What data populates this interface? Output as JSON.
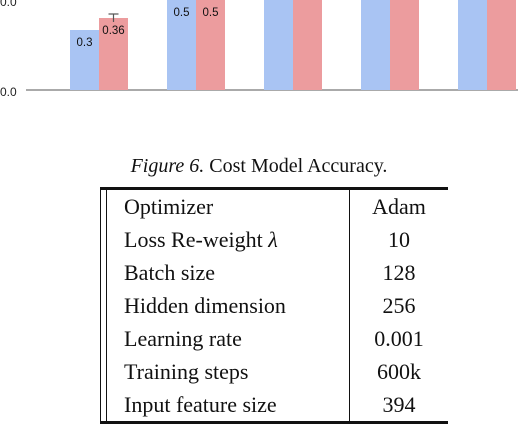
{
  "chart_data": {
    "type": "bar",
    "ytick_label": "0.0",
    "series": [
      {
        "color": "#a9c4f3",
        "values": [
          0.3,
          0.5,
          null,
          null,
          null
        ]
      },
      {
        "color": "#ec9c9e",
        "values": [
          0.36,
          0.5,
          null,
          null,
          null
        ]
      }
    ],
    "data_labels": [
      [
        "0.3",
        "0.5"
      ],
      [
        "0.36",
        "0.5"
      ]
    ],
    "error": [
      null,
      [
        0.34,
        0.38
      ]
    ]
  },
  "caption": {
    "figure_label": "Figure 6.",
    "text": "Cost Model Accuracy."
  },
  "table": {
    "rows": [
      {
        "param": "Optimizer",
        "value": "Adam"
      },
      {
        "param": "Loss Re-weight ",
        "symbol": "λ",
        "value": "10"
      },
      {
        "param": "Batch size",
        "value": "128"
      },
      {
        "param": "Hidden dimension",
        "value": "256"
      },
      {
        "param": "Learning rate",
        "value": "0.001"
      },
      {
        "param": "Training steps",
        "value": "600k"
      },
      {
        "param": "Input feature size",
        "value": "394"
      }
    ]
  }
}
